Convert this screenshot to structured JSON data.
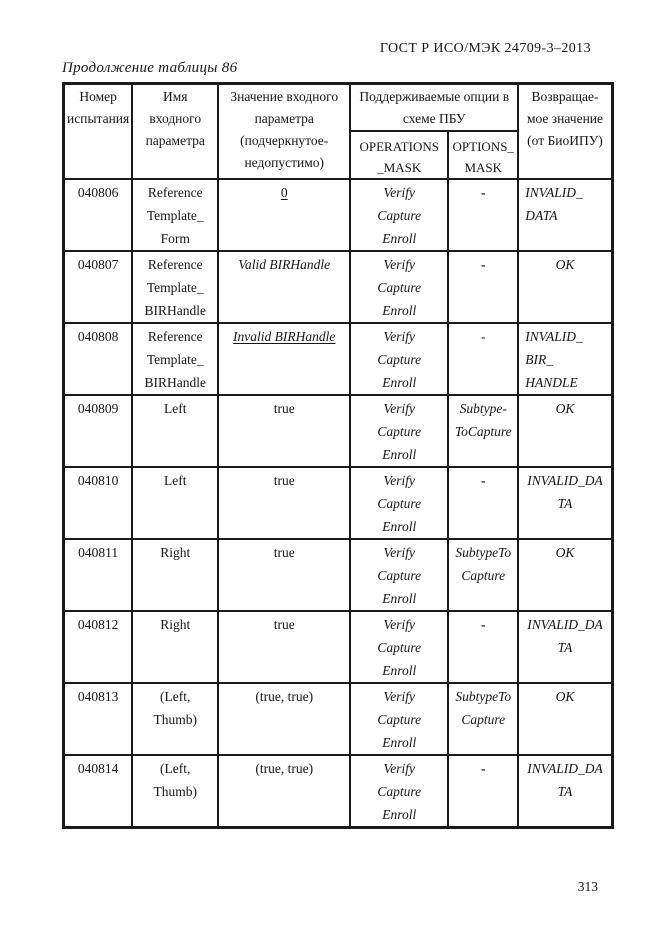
{
  "page": {
    "doc_header": "ГОСТ Р ИСО/МЭК 24709-3–2013",
    "table_caption": "Продолжение таблицы 86",
    "page_number": "313"
  },
  "table": {
    "header": {
      "test_number": [
        "Номер",
        "испытания"
      ],
      "param_name": [
        "Имя",
        "входного",
        "параметра"
      ],
      "param_value": [
        "Значение входного",
        "параметра",
        "(подчеркнутое-",
        "недопустимо)"
      ],
      "options_group": [
        "Поддерживаемые опции в",
        "схеме ПБУ"
      ],
      "operations_mask": [
        "OPERATIONS",
        "_MASK"
      ],
      "options_mask": [
        "OPTIONS_",
        "MASK"
      ],
      "return_value": [
        "Возвращае-",
        "мое значение",
        "(от БиоИПУ)"
      ]
    },
    "rows": [
      {
        "test_number": "040806",
        "param_name": [
          "Reference",
          "Template_",
          "Form"
        ],
        "param_value": {
          "lines": [
            "0"
          ],
          "underline": true
        },
        "operations_mask": {
          "lines": [
            "Verify",
            "Capture",
            "Enroll"
          ],
          "italic": true
        },
        "options_mask": {
          "lines": [
            "-"
          ],
          "bold": true
        },
        "return_value": {
          "lines": [
            "INVALID_",
            "DATA"
          ],
          "italic": true,
          "align": "left"
        }
      },
      {
        "test_number": "040807",
        "param_name": [
          "Reference",
          "Template_",
          "BIRHandle"
        ],
        "param_value": {
          "lines": [
            "Valid BIRHandle"
          ],
          "italic": true
        },
        "operations_mask": {
          "lines": [
            "Verify",
            "Capture",
            "Enroll"
          ],
          "italic": true
        },
        "options_mask": {
          "lines": [
            "-"
          ],
          "bold": true
        },
        "return_value": {
          "lines": [
            "OK"
          ],
          "italic": true
        }
      },
      {
        "test_number": "040808",
        "param_name": [
          "Reference",
          "Template_",
          "BIRHandle"
        ],
        "param_value": {
          "lines": [
            "Invalid BIRHandle"
          ],
          "italic": true,
          "underline": true
        },
        "operations_mask": {
          "lines": [
            "Verify",
            "Capture",
            "Enroll"
          ],
          "italic": true
        },
        "options_mask": {
          "lines": [
            "-"
          ]
        },
        "return_value": {
          "lines": [
            "INVALID_",
            "BIR_",
            "HANDLE"
          ],
          "italic": true,
          "align": "left"
        }
      },
      {
        "test_number": "040809",
        "param_name": [
          "Left"
        ],
        "param_value": {
          "lines": [
            "true"
          ]
        },
        "operations_mask": {
          "lines": [
            "Verify",
            "Capture",
            "Enroll"
          ],
          "italic": true
        },
        "options_mask": {
          "lines": [
            "Subtype-",
            "ToCapture"
          ],
          "italic": true
        },
        "return_value": {
          "lines": [
            "OK"
          ],
          "italic": true
        }
      },
      {
        "test_number": "040810",
        "param_name": [
          "Left"
        ],
        "param_value": {
          "lines": [
            "true"
          ]
        },
        "operations_mask": {
          "lines": [
            "Verify",
            "Capture",
            "Enroll"
          ],
          "italic": true
        },
        "options_mask": {
          "lines": [
            "-"
          ],
          "bold": true
        },
        "return_value": {
          "lines": [
            "INVALID_DA",
            "TA"
          ],
          "italic": true
        }
      },
      {
        "test_number": "040811",
        "param_name": [
          "Right"
        ],
        "param_value": {
          "lines": [
            "true"
          ]
        },
        "operations_mask": {
          "lines": [
            "Verify",
            "Capture",
            "Enroll"
          ],
          "italic": true
        },
        "options_mask": {
          "lines": [
            "SubtypeTo",
            "Capture"
          ],
          "italic": true
        },
        "return_value": {
          "lines": [
            "OK"
          ],
          "italic": true
        }
      },
      {
        "test_number": "040812",
        "param_name": [
          "Right"
        ],
        "param_value": {
          "lines": [
            "true"
          ]
        },
        "operations_mask": {
          "lines": [
            "Verify",
            "Capture",
            "Enroll"
          ],
          "italic": true
        },
        "options_mask": {
          "lines": [
            "-"
          ],
          "bold": true
        },
        "return_value": {
          "lines": [
            "INVALID_DA",
            "TA"
          ],
          "italic": true
        }
      },
      {
        "test_number": "040813",
        "param_name": [
          "(Left,",
          "Thumb)"
        ],
        "param_value": {
          "lines": [
            "(true, true)"
          ]
        },
        "operations_mask": {
          "lines": [
            "Verify",
            "Capture",
            "Enroll"
          ],
          "italic": true
        },
        "options_mask": {
          "lines": [
            "SubtypeTo",
            "Capture"
          ],
          "italic": true
        },
        "return_value": {
          "lines": [
            "OK"
          ],
          "italic": true
        }
      },
      {
        "test_number": "040814",
        "param_name": [
          "(Left,",
          "Thumb)"
        ],
        "param_value": {
          "lines": [
            "(true, true)"
          ]
        },
        "operations_mask": {
          "lines": [
            "Verify",
            "Capture",
            "Enroll"
          ],
          "italic": true
        },
        "options_mask": {
          "lines": [
            "-"
          ],
          "bold": true
        },
        "return_value": {
          "lines": [
            "INVALID_DA",
            "TA"
          ],
          "italic": true
        }
      }
    ]
  }
}
